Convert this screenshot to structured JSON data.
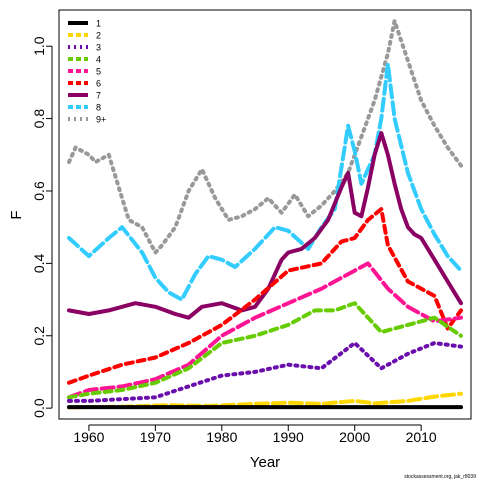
{
  "chart_data": {
    "type": "line",
    "xlabel": "Year",
    "ylabel": "F",
    "xlim": [
      1955.5,
      2017.5
    ],
    "ylim": [
      -0.03,
      1.1
    ],
    "xticks": [
      1960,
      1970,
      1980,
      1990,
      2000,
      2010
    ],
    "xtick_labels": [
      "1960",
      "1970",
      "1980",
      "1990",
      "2000",
      "2010"
    ],
    "yticks": [
      0.0,
      0.2,
      0.4,
      0.6,
      0.8,
      1.0
    ],
    "ytick_labels": [
      "0.0",
      "0.2",
      "0.4",
      "0.6",
      "0.8",
      "1.0"
    ],
    "legend_position": "top-left",
    "grid": false,
    "credit": "stockassessment.org, jak_r8039",
    "series": [
      {
        "name": "1",
        "color": "#000000",
        "dash": "solid",
        "x": [
          1957,
          1960,
          1970,
          1980,
          1990,
          2000,
          2010,
          2016
        ],
        "y": [
          0.003,
          0.003,
          0.003,
          0.003,
          0.003,
          0.003,
          0.003,
          0.003
        ]
      },
      {
        "name": "2",
        "color": "#ffd700",
        "dash": "longdash",
        "x": [
          1957,
          1965,
          1972,
          1978,
          1985,
          1990,
          1995,
          2000,
          2003,
          2008,
          2012,
          2016
        ],
        "y": [
          0.002,
          0.004,
          0.008,
          0.006,
          0.012,
          0.015,
          0.012,
          0.02,
          0.013,
          0.02,
          0.032,
          0.04
        ]
      },
      {
        "name": "3",
        "color": "#6a0dad",
        "dash": "dotted",
        "x": [
          1957,
          1960,
          1965,
          1970,
          1975,
          1980,
          1985,
          1990,
          1995,
          2000,
          2004,
          2008,
          2012,
          2016
        ],
        "y": [
          0.02,
          0.02,
          0.025,
          0.03,
          0.06,
          0.09,
          0.1,
          0.12,
          0.11,
          0.18,
          0.11,
          0.15,
          0.18,
          0.17
        ]
      },
      {
        "name": "4",
        "color": "#66cc00",
        "dash": "dashed",
        "x": [
          1957,
          1960,
          1965,
          1970,
          1975,
          1980,
          1985,
          1990,
          1994,
          1997,
          2000,
          2004,
          2008,
          2012,
          2016
        ],
        "y": [
          0.03,
          0.04,
          0.05,
          0.07,
          0.11,
          0.18,
          0.2,
          0.23,
          0.27,
          0.27,
          0.29,
          0.21,
          0.23,
          0.25,
          0.2
        ]
      },
      {
        "name": "5",
        "color": "#ff1493",
        "dash": "longdash",
        "x": [
          1957,
          1960,
          1965,
          1970,
          1975,
          1980,
          1985,
          1990,
          1995,
          1998,
          2000,
          2002,
          2005,
          2008,
          2012,
          2016
        ],
        "y": [
          0.03,
          0.05,
          0.06,
          0.08,
          0.12,
          0.2,
          0.25,
          0.29,
          0.33,
          0.36,
          0.38,
          0.4,
          0.33,
          0.28,
          0.24,
          0.25
        ]
      },
      {
        "name": "6",
        "color": "#ff0000",
        "dash": "dashed",
        "x": [
          1957,
          1960,
          1965,
          1970,
          1975,
          1980,
          1985,
          1990,
          1995,
          1998,
          2000,
          2002,
          2004,
          2005,
          2008,
          2012,
          2014,
          2016
        ],
        "y": [
          0.07,
          0.09,
          0.12,
          0.14,
          0.18,
          0.23,
          0.3,
          0.38,
          0.4,
          0.46,
          0.47,
          0.52,
          0.55,
          0.45,
          0.35,
          0.31,
          0.22,
          0.27
        ]
      },
      {
        "name": "7",
        "color": "#8b0063",
        "dash": "solid",
        "x": [
          1957,
          1960,
          1963,
          1965,
          1967,
          1970,
          1973,
          1975,
          1977,
          1980,
          1983,
          1985,
          1987,
          1989,
          1990,
          1992,
          1994,
          1996,
          1998,
          1999,
          2000,
          2001,
          2002,
          2003,
          2004,
          2005,
          2006,
          2007,
          2008,
          2009,
          2010,
          2012,
          2014,
          2016
        ],
        "y": [
          0.27,
          0.26,
          0.27,
          0.28,
          0.29,
          0.28,
          0.26,
          0.25,
          0.28,
          0.29,
          0.27,
          0.28,
          0.33,
          0.41,
          0.43,
          0.44,
          0.47,
          0.52,
          0.61,
          0.65,
          0.54,
          0.53,
          0.61,
          0.7,
          0.76,
          0.7,
          0.62,
          0.55,
          0.5,
          0.48,
          0.47,
          0.41,
          0.35,
          0.29
        ]
      },
      {
        "name": "8",
        "color": "#33ccff",
        "dash": "longdash",
        "x": [
          1957,
          1960,
          1963,
          1965,
          1968,
          1970,
          1972,
          1974,
          1976,
          1978,
          1980,
          1982,
          1985,
          1988,
          1990,
          1993,
          1995,
          1997,
          1999,
          2000,
          2001,
          2003,
          2004,
          2005,
          2006,
          2008,
          2010,
          2012,
          2014,
          2016
        ],
        "y": [
          0.47,
          0.42,
          0.47,
          0.5,
          0.43,
          0.36,
          0.32,
          0.3,
          0.37,
          0.42,
          0.41,
          0.39,
          0.44,
          0.5,
          0.49,
          0.44,
          0.5,
          0.55,
          0.78,
          0.71,
          0.62,
          0.7,
          0.8,
          0.95,
          0.8,
          0.65,
          0.55,
          0.48,
          0.42,
          0.38
        ]
      },
      {
        "name": "9+",
        "color": "#999999",
        "dash": "dotted",
        "x": [
          1957,
          1958,
          1960,
          1961,
          1963,
          1965,
          1966,
          1968,
          1970,
          1971,
          1973,
          1975,
          1977,
          1979,
          1981,
          1983,
          1985,
          1987,
          1989,
          1991,
          1993,
          1995,
          1997,
          1999,
          2001,
          2003,
          2005,
          2006,
          2008,
          2010,
          2012,
          2014,
          2016
        ],
        "y": [
          0.68,
          0.72,
          0.7,
          0.68,
          0.7,
          0.58,
          0.52,
          0.5,
          0.43,
          0.45,
          0.5,
          0.6,
          0.66,
          0.58,
          0.52,
          0.53,
          0.55,
          0.58,
          0.54,
          0.59,
          0.53,
          0.56,
          0.6,
          0.65,
          0.75,
          0.85,
          0.98,
          1.07,
          0.96,
          0.85,
          0.78,
          0.72,
          0.67
        ]
      }
    ]
  }
}
